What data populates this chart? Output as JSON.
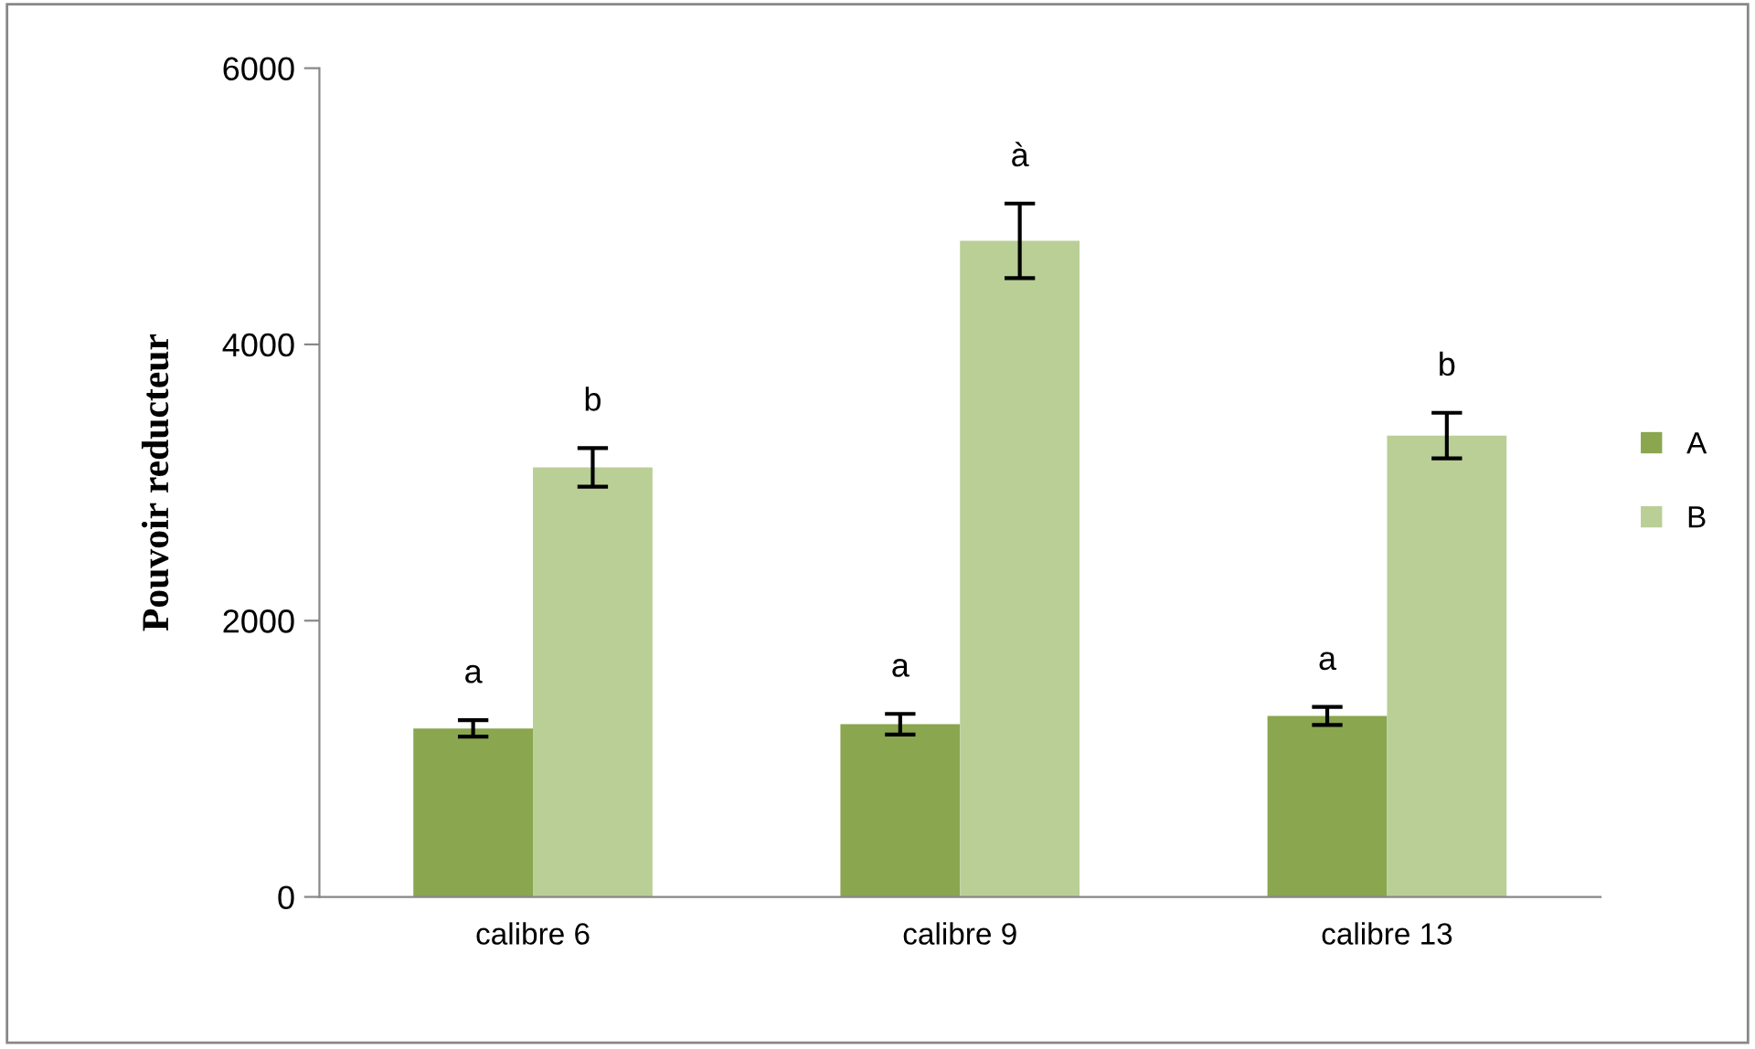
{
  "chart_data": {
    "type": "bar",
    "ylabel": "Pouvoir reducteur",
    "categories": [
      "calibre 6",
      "calibre 9",
      "calibre 13"
    ],
    "series": [
      {
        "name": "A",
        "color": "#8aa64f",
        "values": [
          1220,
          1250,
          1310
        ],
        "errors": [
          60,
          75,
          65
        ],
        "value_labels": [
          "a",
          "a",
          "a"
        ]
      },
      {
        "name": "B",
        "color": "#b9cf96",
        "values": [
          3110,
          4750,
          3340
        ],
        "errors": [
          140,
          270,
          165
        ],
        "value_labels": [
          "b",
          "à",
          "b"
        ]
      }
    ],
    "ylim": [
      0,
      6000
    ],
    "yticks": [
      0,
      2000,
      4000,
      6000
    ],
    "grid": false,
    "legend": "right"
  }
}
